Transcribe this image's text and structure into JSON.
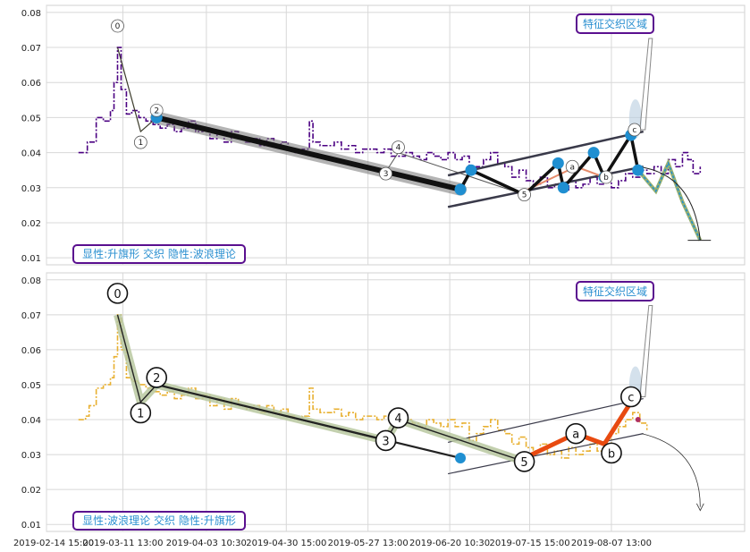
{
  "chart_data": [
    {
      "type": "line",
      "panel": "top",
      "ylim": [
        0.008,
        0.082
      ],
      "yticks": [
        0.01,
        0.02,
        0.03,
        0.04,
        0.05,
        0.06,
        0.07,
        0.08
      ],
      "grid": true,
      "colors": {
        "price": "#4b0082",
        "wave": "#111111",
        "node": "#1f8fd1",
        "channel": "#3a3a4a",
        "label": "#2a8fd0",
        "box": "#5a0f8f"
      },
      "price": [
        [
          0.0,
          0.04
        ],
        [
          0.4,
          0.04
        ],
        [
          0.5,
          0.043
        ],
        [
          1.0,
          0.05
        ],
        [
          1.4,
          0.049
        ],
        [
          1.8,
          0.052
        ],
        [
          2.0,
          0.06
        ],
        [
          2.2,
          0.07
        ],
        [
          2.4,
          0.058
        ],
        [
          2.7,
          0.051
        ],
        [
          3.0,
          0.052
        ],
        [
          3.4,
          0.05
        ],
        [
          3.8,
          0.049
        ],
        [
          4.2,
          0.048
        ],
        [
          4.6,
          0.047
        ],
        [
          5.0,
          0.048
        ],
        [
          5.4,
          0.046
        ],
        [
          5.8,
          0.047
        ],
        [
          6.2,
          0.049
        ],
        [
          6.6,
          0.046
        ],
        [
          7.0,
          0.047
        ],
        [
          7.4,
          0.044
        ],
        [
          7.8,
          0.046
        ],
        [
          8.2,
          0.043
        ],
        [
          8.6,
          0.046
        ],
        [
          9.0,
          0.044
        ],
        [
          9.4,
          0.043
        ],
        [
          9.8,
          0.044
        ],
        [
          10.2,
          0.042
        ],
        [
          10.6,
          0.044
        ],
        [
          11.0,
          0.042
        ],
        [
          11.4,
          0.043
        ],
        [
          11.8,
          0.041
        ],
        [
          12.2,
          0.04
        ],
        [
          12.6,
          0.041
        ],
        [
          13.0,
          0.049
        ],
        [
          13.2,
          0.043
        ],
        [
          13.6,
          0.042
        ],
        [
          14.0,
          0.042
        ],
        [
          14.4,
          0.043
        ],
        [
          14.8,
          0.041
        ],
        [
          15.2,
          0.042
        ],
        [
          15.6,
          0.04
        ],
        [
          16.0,
          0.041
        ],
        [
          16.4,
          0.041
        ],
        [
          16.8,
          0.04
        ],
        [
          17.2,
          0.041
        ],
        [
          17.6,
          0.039
        ],
        [
          18.0,
          0.039
        ],
        [
          18.4,
          0.04
        ],
        [
          18.8,
          0.039
        ],
        [
          19.2,
          0.038
        ],
        [
          19.6,
          0.04
        ],
        [
          20.0,
          0.039
        ],
        [
          20.4,
          0.038
        ],
        [
          20.8,
          0.04
        ],
        [
          21.2,
          0.038
        ],
        [
          21.6,
          0.039
        ],
        [
          22.0,
          0.034
        ],
        [
          22.4,
          0.036
        ],
        [
          22.8,
          0.038
        ],
        [
          23.2,
          0.04
        ],
        [
          23.6,
          0.037
        ],
        [
          24.0,
          0.036
        ],
        [
          24.4,
          0.033
        ],
        [
          24.8,
          0.035
        ],
        [
          25.2,
          0.032
        ],
        [
          25.6,
          0.031
        ],
        [
          26.0,
          0.033
        ],
        [
          26.4,
          0.03
        ],
        [
          26.8,
          0.031
        ],
        [
          27.2,
          0.029
        ],
        [
          27.6,
          0.032
        ],
        [
          28.0,
          0.03
        ],
        [
          28.4,
          0.031
        ],
        [
          28.8,
          0.033
        ],
        [
          29.2,
          0.031
        ],
        [
          29.6,
          0.032
        ],
        [
          30.0,
          0.03
        ],
        [
          30.4,
          0.032
        ],
        [
          30.8,
          0.034
        ],
        [
          31.2,
          0.033
        ],
        [
          31.6,
          0.035
        ],
        [
          32.0,
          0.034
        ],
        [
          32.4,
          0.036
        ],
        [
          32.8,
          0.034
        ],
        [
          33.2,
          0.038
        ],
        [
          33.6,
          0.036
        ],
        [
          34.0,
          0.04
        ],
        [
          34.3,
          0.038
        ],
        [
          34.6,
          0.034
        ],
        [
          35.0,
          0.036
        ]
      ],
      "wave": [
        {
          "x": 2.2,
          "y": 0.07,
          "label": "0",
          "node": false
        },
        {
          "x": 3.5,
          "y": 0.046,
          "label": "1",
          "node": false
        },
        {
          "x": 4.4,
          "y": 0.05,
          "label": "2",
          "node": true
        },
        {
          "x": 21.5,
          "y": 0.0295,
          "label": "",
          "node": true
        },
        {
          "x": 22.1,
          "y": 0.035,
          "label": "",
          "node": true
        },
        {
          "x": 25.1,
          "y": 0.028,
          "label": "5",
          "node": true
        },
        {
          "x": 27.0,
          "y": 0.037,
          "label": "",
          "node": true
        },
        {
          "x": 27.3,
          "y": 0.03,
          "label": "",
          "node": true
        },
        {
          "x": 29.0,
          "y": 0.04,
          "label": "",
          "node": true
        },
        {
          "x": 29.6,
          "y": 0.033,
          "label": "b",
          "node": true
        },
        {
          "x": 31.1,
          "y": 0.045,
          "label": "c",
          "node": true
        },
        {
          "x": 31.5,
          "y": 0.035,
          "label": "",
          "node": true
        }
      ],
      "labels_extra": [
        {
          "x": 18.0,
          "y": 0.04,
          "label": "4"
        },
        {
          "x": 17.3,
          "y": 0.034,
          "label": "3"
        },
        {
          "x": 27.8,
          "y": 0.036,
          "label": "a"
        }
      ],
      "channel": [
        [
          [
            20.8,
            0.0245
          ],
          [
            31.8,
            0.036
          ]
        ],
        [
          [
            20.8,
            0.0335
          ],
          [
            31.8,
            0.046
          ]
        ]
      ],
      "forecast": [
        [
          31.5,
          0.035
        ],
        [
          32.5,
          0.029
        ],
        [
          33.2,
          0.037
        ],
        [
          34.0,
          0.026
        ],
        [
          35.0,
          0.015
        ]
      ],
      "title_box": "特征交织区域",
      "caption": "显性:升旗形 交织 隐性:波浪理论"
    },
    {
      "type": "line",
      "panel": "bottom",
      "ylim": [
        0.008,
        0.082
      ],
      "yticks": [
        0.01,
        0.02,
        0.03,
        0.04,
        0.05,
        0.06,
        0.07,
        0.08
      ],
      "grid": true,
      "colors": {
        "price": "#e8b030",
        "wave": "#222222",
        "wave_band": "#b8c8a0",
        "abc": "#e84a10",
        "channel": "#3a3a4a",
        "label": "#2a8fd0",
        "box": "#5a0f8f",
        "node": "#1f8fd1"
      },
      "price": [
        [
          0.0,
          0.04
        ],
        [
          0.4,
          0.041
        ],
        [
          0.6,
          0.044
        ],
        [
          1.0,
          0.049
        ],
        [
          1.4,
          0.05
        ],
        [
          1.8,
          0.052
        ],
        [
          2.0,
          0.058
        ],
        [
          2.2,
          0.07
        ],
        [
          2.4,
          0.06
        ],
        [
          2.7,
          0.052
        ],
        [
          3.0,
          0.051
        ],
        [
          3.4,
          0.05
        ],
        [
          3.8,
          0.049
        ],
        [
          4.2,
          0.048
        ],
        [
          4.6,
          0.047
        ],
        [
          5.0,
          0.048
        ],
        [
          5.4,
          0.046
        ],
        [
          5.8,
          0.047
        ],
        [
          6.2,
          0.049
        ],
        [
          6.6,
          0.046
        ],
        [
          7.0,
          0.047
        ],
        [
          7.4,
          0.044
        ],
        [
          7.8,
          0.046
        ],
        [
          8.2,
          0.043
        ],
        [
          8.6,
          0.046
        ],
        [
          9.0,
          0.044
        ],
        [
          9.4,
          0.043
        ],
        [
          9.8,
          0.044
        ],
        [
          10.2,
          0.042
        ],
        [
          10.6,
          0.044
        ],
        [
          11.0,
          0.042
        ],
        [
          11.4,
          0.043
        ],
        [
          11.8,
          0.041
        ],
        [
          12.2,
          0.04
        ],
        [
          12.6,
          0.041
        ],
        [
          13.0,
          0.049
        ],
        [
          13.2,
          0.043
        ],
        [
          13.6,
          0.042
        ],
        [
          14.0,
          0.042
        ],
        [
          14.4,
          0.043
        ],
        [
          14.8,
          0.041
        ],
        [
          15.2,
          0.042
        ],
        [
          15.6,
          0.04
        ],
        [
          16.0,
          0.041
        ],
        [
          16.4,
          0.041
        ],
        [
          16.8,
          0.04
        ],
        [
          17.2,
          0.041
        ],
        [
          17.6,
          0.039
        ],
        [
          18.0,
          0.039
        ],
        [
          18.4,
          0.04
        ],
        [
          18.8,
          0.039
        ],
        [
          19.2,
          0.038
        ],
        [
          19.6,
          0.04
        ],
        [
          20.0,
          0.039
        ],
        [
          20.4,
          0.038
        ],
        [
          20.8,
          0.04
        ],
        [
          21.2,
          0.038
        ],
        [
          21.6,
          0.039
        ],
        [
          22.0,
          0.034
        ],
        [
          22.4,
          0.036
        ],
        [
          22.8,
          0.038
        ],
        [
          23.2,
          0.04
        ],
        [
          23.6,
          0.037
        ],
        [
          24.0,
          0.036
        ],
        [
          24.4,
          0.033
        ],
        [
          24.8,
          0.035
        ],
        [
          25.2,
          0.032
        ],
        [
          25.6,
          0.031
        ],
        [
          26.0,
          0.033
        ],
        [
          26.4,
          0.03
        ],
        [
          26.8,
          0.031
        ],
        [
          27.2,
          0.029
        ],
        [
          27.6,
          0.032
        ],
        [
          28.0,
          0.03
        ],
        [
          28.4,
          0.031
        ],
        [
          28.8,
          0.033
        ],
        [
          29.2,
          0.031
        ],
        [
          29.6,
          0.032
        ],
        [
          30.0,
          0.036
        ],
        [
          30.4,
          0.038
        ],
        [
          30.8,
          0.04
        ],
        [
          31.2,
          0.042
        ],
        [
          31.6,
          0.039
        ],
        [
          32.0,
          0.037
        ]
      ],
      "wave": [
        {
          "x": 2.2,
          "y": 0.07,
          "label": "0"
        },
        {
          "x": 3.5,
          "y": 0.045,
          "label": "1"
        },
        {
          "x": 4.4,
          "y": 0.05,
          "label": "2"
        },
        {
          "x": 17.3,
          "y": 0.034,
          "label": "3"
        },
        {
          "x": 18.0,
          "y": 0.04,
          "label": "4"
        },
        {
          "x": 25.1,
          "y": 0.028,
          "label": "5"
        }
      ],
      "wave_branch": [
        [
          4.4,
          0.05
        ],
        [
          21.5,
          0.029
        ]
      ],
      "abc": [
        {
          "x": 25.1,
          "y": 0.029,
          "label": ""
        },
        {
          "x": 28.0,
          "y": 0.036,
          "label": "a"
        },
        {
          "x": 29.6,
          "y": 0.033,
          "label": "b"
        },
        {
          "x": 31.1,
          "y": 0.045,
          "label": "c"
        }
      ],
      "channel": [
        [
          [
            20.8,
            0.0245
          ],
          [
            31.8,
            0.036
          ]
        ],
        [
          [
            20.8,
            0.0335
          ],
          [
            31.8,
            0.046
          ]
        ]
      ],
      "curve_arrow": [
        [
          31.5,
          0.035
        ],
        [
          33.5,
          0.03
        ],
        [
          35.0,
          0.015
        ]
      ],
      "title_box": "特征交织区域",
      "caption": "显性:波浪理论 交织 隐性:升旗形"
    }
  ],
  "x_ticks": [
    "2019-02-14 15:00",
    "2019-03-11 13:00",
    "2019-04-03 10:30",
    "2019-04-30 15:00",
    "2019-05-27 13:00",
    "2019-06-20 10:30",
    "2019-07-15 15:00",
    "2019-08-07 13:00"
  ]
}
